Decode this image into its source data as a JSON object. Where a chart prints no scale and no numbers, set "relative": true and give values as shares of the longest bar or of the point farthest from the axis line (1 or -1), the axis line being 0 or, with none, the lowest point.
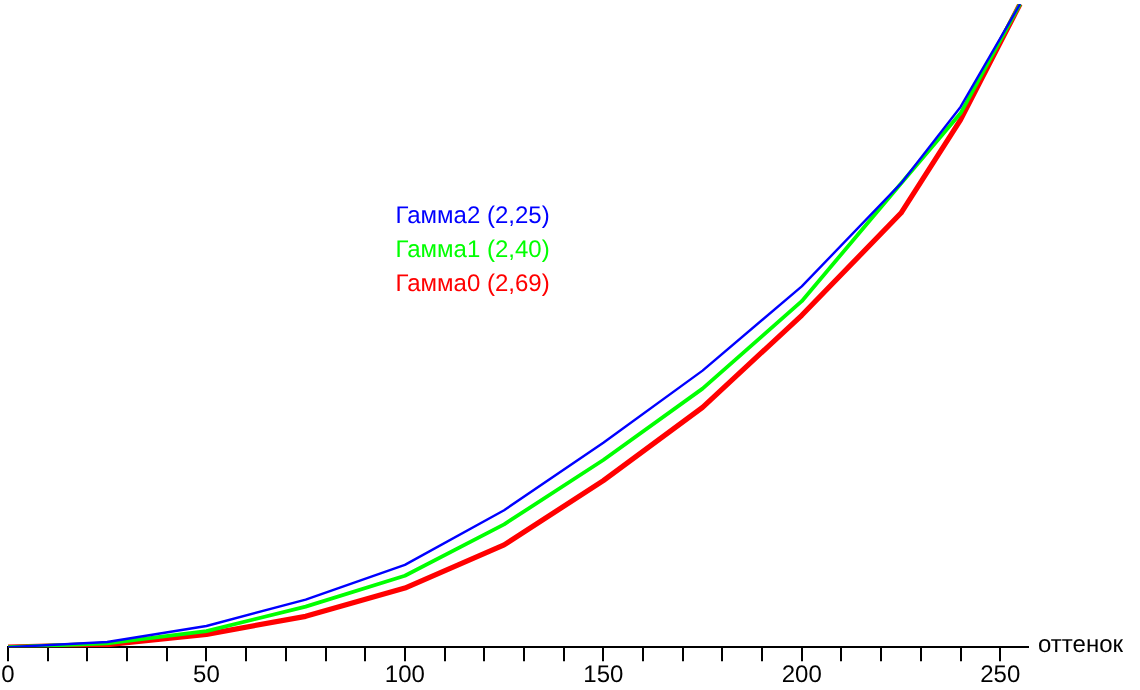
{
  "chart_data": {
    "type": "line",
    "relative": true,
    "xlabel": "оттенок",
    "legend": "top left",
    "marker": "none",
    "line_style": "solid",
    "grid": false,
    "tick_labels": "x",
    "x": [
      0,
      25,
      50,
      75,
      100,
      125,
      150,
      175,
      200,
      225,
      240,
      255
    ],
    "xlim": [
      0,
      257
    ],
    "xticks": [
      0,
      {
        "value": 10,
        "label": null
      },
      {
        "value": 20,
        "label": null
      },
      {
        "value": 30,
        "label": null
      },
      {
        "value": 40,
        "label": null
      },
      50,
      {
        "value": 60,
        "label": null
      },
      {
        "value": 70,
        "label": null
      },
      {
        "value": 80,
        "label": null
      },
      {
        "value": 90,
        "label": null
      },
      100,
      {
        "value": 110,
        "label": null
      },
      {
        "value": 120,
        "label": null
      },
      {
        "value": 130,
        "label": null
      },
      {
        "value": 140,
        "label": null
      },
      150,
      {
        "value": 160,
        "label": null
      },
      {
        "value": 170,
        "label": null
      },
      {
        "value": 180,
        "label": null
      },
      {
        "value": 190,
        "label": null
      },
      200,
      {
        "value": 210,
        "label": null
      },
      {
        "value": 220,
        "label": null
      },
      {
        "value": 230,
        "label": null
      },
      {
        "value": 240,
        "label": null
      },
      250
    ],
    "series": [
      {
        "name": "Гамма2 (2,25)",
        "color": "#0000ff",
        "values": [
          0,
          0.008,
          0.033,
          0.074,
          0.128,
          0.213,
          0.318,
          0.43,
          0.561,
          0.721,
          0.84,
          1
        ]
      },
      {
        "name": "Гамма1 (2,40)",
        "color": "#00ff00",
        "values": [
          0,
          0.006,
          0.025,
          0.063,
          0.111,
          0.191,
          0.291,
          0.402,
          0.538,
          0.721,
          0.83,
          1
        ]
      },
      {
        "name": "Гамма0 (2,69)",
        "color": "#ff0000",
        "values": [
          0,
          0.004,
          0.02,
          0.048,
          0.092,
          0.159,
          0.259,
          0.373,
          0.516,
          0.675,
          0.82,
          1
        ]
      }
    ]
  }
}
